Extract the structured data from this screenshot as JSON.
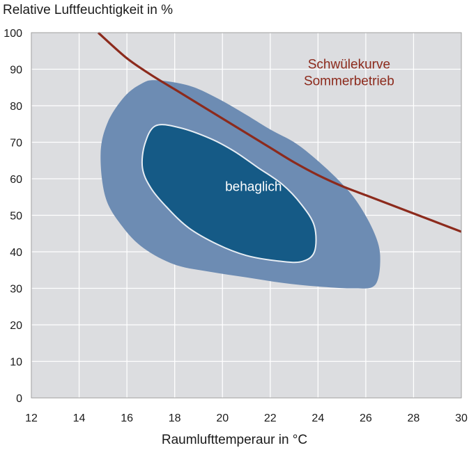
{
  "chart_data": {
    "type": "line",
    "ylabel": "Relative Luftfeuchtigkeit in %",
    "xlabel": "Raumlufttemperaur in °C",
    "xlim": [
      12,
      30
    ],
    "ylim": [
      0,
      100
    ],
    "x_ticks": [
      "12",
      "14",
      "16",
      "18",
      "20",
      "22",
      "24",
      "26",
      "28",
      "30"
    ],
    "y_ticks": [
      "0",
      "10",
      "20",
      "30",
      "40",
      "50",
      "60",
      "70",
      "80",
      "90",
      "100"
    ],
    "grid": true,
    "series": [
      {
        "name": "Schwülekurve Sommerbetrieb",
        "label_lines": [
          "Schwülekurve",
          "Sommerbetrieb"
        ],
        "color": "#8c2a1c",
        "x": [
          14.8,
          16,
          17,
          18,
          19,
          20,
          21,
          22,
          23,
          24,
          25,
          26,
          27,
          28,
          29,
          30
        ],
        "y": [
          100,
          93,
          88.5,
          84.5,
          80.5,
          76.5,
          72.5,
          68.5,
          64.5,
          61,
          58,
          55.5,
          53,
          50.5,
          48,
          45.5
        ]
      }
    ],
    "regions": [
      {
        "name": "behaglich (Randbereich)",
        "color": "#6d8cb3",
        "x": [
          17.2,
          18.6,
          19.8,
          21,
          22,
          23,
          23.8,
          24.8,
          25.6,
          26.3,
          26.6,
          26.4,
          25.5,
          24,
          22.5,
          21,
          19.5,
          18,
          16.7,
          15.8,
          15.1,
          14.9,
          15.2,
          15.9,
          16.6
        ],
        "y": [
          87,
          85.5,
          82,
          77.5,
          73.5,
          70,
          66,
          60,
          54,
          46,
          39,
          31,
          30,
          30.5,
          31.5,
          33,
          34.5,
          36.5,
          41,
          47,
          55,
          67,
          75.5,
          82.5,
          86
        ]
      },
      {
        "name": "behaglich",
        "label": "behaglich",
        "color": "#155a86",
        "x": [
          17.2,
          18.2,
          19.5,
          20.5,
          21.5,
          22.5,
          23.3,
          23.85,
          23.85,
          23.3,
          22.3,
          21,
          19.8,
          18.6,
          17.7,
          17.0,
          16.65,
          16.75
        ],
        "y": [
          74.5,
          74,
          71,
          67.5,
          63,
          58.5,
          53,
          47,
          40,
          37.3,
          37.5,
          39,
          42,
          46.5,
          52,
          57.5,
          63,
          69.5
        ]
      }
    ],
    "colors": {
      "plot_background": "#dcdde0",
      "grid": "#ffffff",
      "frame": "#9a9a9a"
    }
  }
}
